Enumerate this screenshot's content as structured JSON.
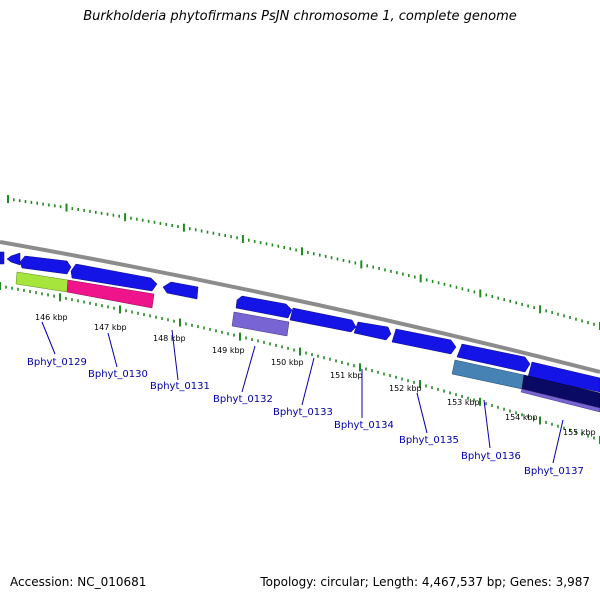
{
  "title": "Burkholderia phytofirmans PsJN chromosome 1, complete genome",
  "footer": {
    "accession": "Accession: NC_010681",
    "summary": "Topology: circular; Length: 4,467,537 bp; Genes: 3,987"
  },
  "ticks": [
    "146 kbp",
    "147 kbp",
    "148 kbp",
    "149 kbp",
    "150 kbp",
    "151 kbp",
    "152 kbp",
    "153 kbp",
    "154 kbp",
    "155 kbp"
  ],
  "genes": [
    "Bphyt_0129",
    "Bphyt_0130",
    "Bphyt_0131",
    "Bphyt_0132",
    "Bphyt_0133",
    "Bphyt_0134",
    "Bphyt_0135",
    "Bphyt_0136",
    "Bphyt_0137"
  ],
  "colors": {
    "backbone": "#8c8c8c",
    "cds": "#1414e6",
    "tick": "#1e8c1e",
    "gene_label": "#0000aa",
    "lime": "#a6e63c",
    "pink": "#f0148c",
    "purple": "#7864d2",
    "steel": "#4682b4",
    "navy": "#0a0a64"
  }
}
